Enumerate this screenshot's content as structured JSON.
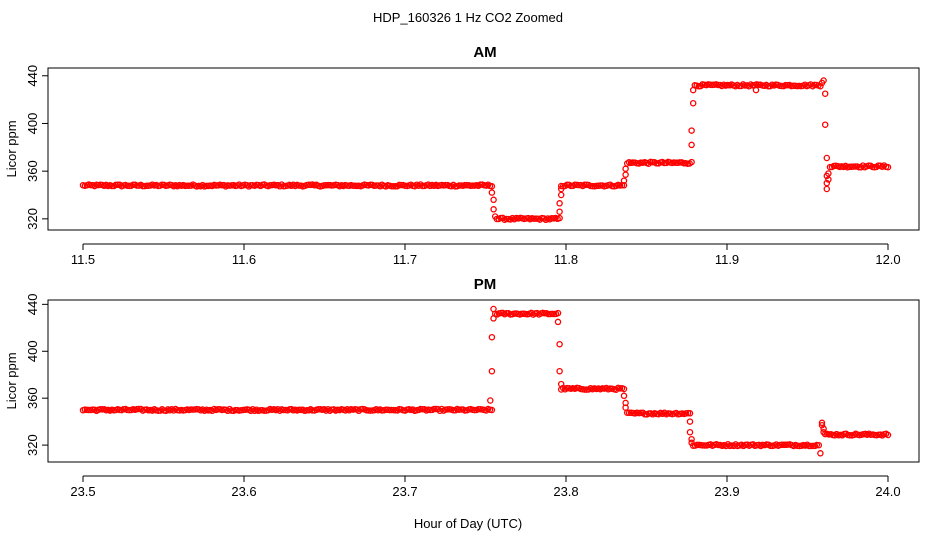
{
  "figure": {
    "title": "HDP_160326  1 Hz CO2 Zoomed",
    "xlabel": "Hour of Day (UTC)"
  },
  "colors": {
    "marker": "#ff0000",
    "axis": "#000000",
    "background": "#ffffff"
  },
  "chart_data": [
    {
      "type": "scatter",
      "title": "AM",
      "xlabel": "Hour of Day (UTC)",
      "ylabel": "Licor ppm",
      "xlim": [
        11.5,
        12.0
      ],
      "ylim": [
        314,
        444
      ],
      "xticks": [
        11.5,
        11.6,
        11.7,
        11.8,
        11.9,
        12.0
      ],
      "xtick_labels": [
        "11.5",
        "11.6",
        "11.7",
        "11.8",
        "11.9",
        "12.0"
      ],
      "yticks": [
        320,
        360,
        400,
        440
      ],
      "ytick_labels": [
        "320",
        "360",
        "400",
        "440"
      ],
      "grid": false,
      "legend": "none",
      "marker": "open-circle",
      "segments": [
        {
          "x": [
            11.5,
            11.754
          ],
          "y": 348
        },
        {
          "x": [
            11.757,
            11.796
          ],
          "y": 320
        },
        {
          "x": [
            11.797,
            11.836
          ],
          "y": 348
        },
        {
          "x": [
            11.838,
            11.878
          ],
          "y": 367
        },
        {
          "x": [
            11.88,
            11.958
          ],
          "y": 432
        },
        {
          "x": [
            11.964,
            12.0
          ],
          "y": 364
        }
      ],
      "transitions": [
        {
          "x": 11.754,
          "y": 342
        },
        {
          "x": 11.755,
          "y": 336
        },
        {
          "x": 11.755,
          "y": 328
        },
        {
          "x": 11.756,
          "y": 322
        },
        {
          "x": 11.796,
          "y": 326
        },
        {
          "x": 11.796,
          "y": 333
        },
        {
          "x": 11.797,
          "y": 340
        },
        {
          "x": 11.797,
          "y": 345
        },
        {
          "x": 11.836,
          "y": 352
        },
        {
          "x": 11.837,
          "y": 357
        },
        {
          "x": 11.837,
          "y": 362
        },
        {
          "x": 11.878,
          "y": 382
        },
        {
          "x": 11.878,
          "y": 394
        },
        {
          "x": 11.879,
          "y": 417
        },
        {
          "x": 11.879,
          "y": 428
        },
        {
          "x": 11.918,
          "y": 428
        },
        {
          "x": 11.959,
          "y": 434
        },
        {
          "x": 11.96,
          "y": 436
        },
        {
          "x": 11.961,
          "y": 425
        },
        {
          "x": 11.961,
          "y": 399
        },
        {
          "x": 11.962,
          "y": 371
        },
        {
          "x": 11.962,
          "y": 356
        },
        {
          "x": 11.962,
          "y": 350
        },
        {
          "x": 11.962,
          "y": 345
        },
        {
          "x": 11.963,
          "y": 353
        },
        {
          "x": 11.963,
          "y": 358
        }
      ]
    },
    {
      "type": "scatter",
      "title": "PM",
      "xlabel": "Hour of Day (UTC)",
      "ylabel": "Licor ppm",
      "xlim": [
        23.5,
        24.0
      ],
      "ylim": [
        309,
        442
      ],
      "xticks": [
        23.5,
        23.6,
        23.7,
        23.8,
        23.9,
        24.0
      ],
      "xtick_labels": [
        "23.5",
        "23.6",
        "23.7",
        "23.8",
        "23.9",
        "24.0"
      ],
      "yticks": [
        320,
        360,
        400,
        440
      ],
      "ytick_labels": [
        "320",
        "360",
        "400",
        "440"
      ],
      "grid": false,
      "legend": "none",
      "marker": "open-circle",
      "segments": [
        {
          "x": [
            23.5,
            23.754
          ],
          "y": 350
        },
        {
          "x": [
            23.756,
            23.795
          ],
          "y": 432
        },
        {
          "x": [
            23.797,
            23.836
          ],
          "y": 368
        },
        {
          "x": [
            23.838,
            23.877
          ],
          "y": 347
        },
        {
          "x": [
            23.879,
            23.957
          ],
          "y": 320
        },
        {
          "x": [
            23.961,
            24.0
          ],
          "y": 329
        }
      ],
      "transitions": [
        {
          "x": 23.753,
          "y": 358
        },
        {
          "x": 23.754,
          "y": 383
        },
        {
          "x": 23.754,
          "y": 412
        },
        {
          "x": 23.755,
          "y": 428
        },
        {
          "x": 23.755,
          "y": 436
        },
        {
          "x": 23.795,
          "y": 425
        },
        {
          "x": 23.796,
          "y": 406
        },
        {
          "x": 23.796,
          "y": 383
        },
        {
          "x": 23.797,
          "y": 372
        },
        {
          "x": 23.836,
          "y": 362
        },
        {
          "x": 23.837,
          "y": 356
        },
        {
          "x": 23.837,
          "y": 352
        },
        {
          "x": 23.877,
          "y": 340
        },
        {
          "x": 23.877,
          "y": 331
        },
        {
          "x": 23.878,
          "y": 325
        },
        {
          "x": 23.878,
          "y": 322
        },
        {
          "x": 23.958,
          "y": 313
        },
        {
          "x": 23.959,
          "y": 337
        },
        {
          "x": 23.959,
          "y": 339
        },
        {
          "x": 23.96,
          "y": 334
        },
        {
          "x": 23.96,
          "y": 331
        }
      ]
    }
  ]
}
